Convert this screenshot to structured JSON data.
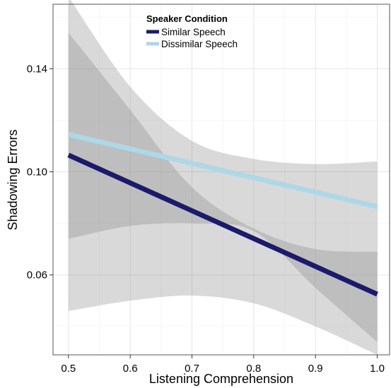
{
  "chart_data": {
    "type": "line",
    "xlabel": "Listening Comprehension",
    "ylabel": "Shadowing Errors",
    "xlim": [
      0.475,
      1.02
    ],
    "ylim": [
      0.029,
      0.165
    ],
    "x_ticks": [
      0.5,
      0.6,
      0.7,
      0.8,
      0.9,
      1.0
    ],
    "x_tick_labels": [
      "0.5",
      "0.6",
      "0.7",
      "0.8",
      "0.9",
      "1.0"
    ],
    "y_ticks": [
      0.06,
      0.1,
      0.14
    ],
    "y_tick_labels": [
      "0.06",
      "0.10",
      "0.14"
    ],
    "grid": true,
    "legend": {
      "title": "Speaker Condition",
      "position": "top-center"
    },
    "series": [
      {
        "name": "Similar Speech",
        "color": "#1c1a6b",
        "x": [
          0.5,
          1.0
        ],
        "y": [
          0.1065,
          0.0525
        ],
        "band_x": [
          0.5,
          0.6,
          0.7,
          0.8,
          0.9,
          1.0
        ],
        "band_upper": [
          0.154,
          0.124,
          0.094,
          0.078,
          0.07,
          0.069
        ],
        "band_lower": [
          0.074,
          0.079,
          0.08,
          0.077,
          0.055,
          0.034
        ]
      },
      {
        "name": "Dissimilar Speech",
        "color": "#add8e6",
        "x": [
          0.5,
          1.0
        ],
        "y": [
          0.1145,
          0.0865
        ],
        "band_x": [
          0.5,
          0.6,
          0.7,
          0.8,
          0.9,
          1.0
        ],
        "band_upper": [
          0.168,
          0.133,
          0.112,
          0.105,
          0.103,
          0.104
        ],
        "band_lower": [
          0.046,
          0.05,
          0.052,
          0.049,
          0.04,
          0.029
        ]
      }
    ]
  }
}
